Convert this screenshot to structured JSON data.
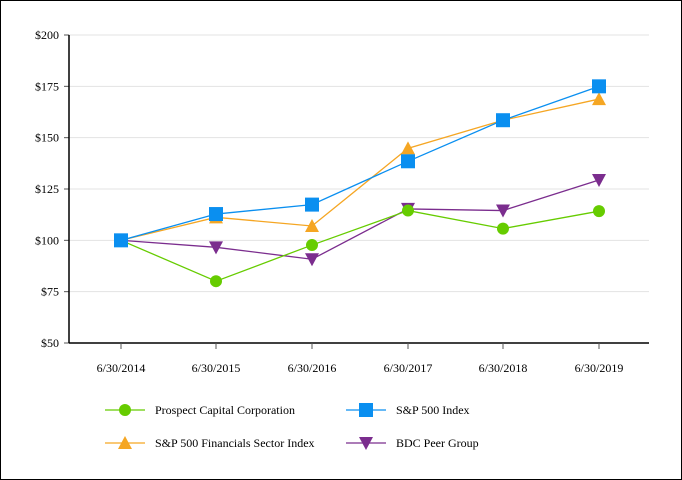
{
  "chart_data": {
    "type": "line",
    "title": "",
    "xlabel": "",
    "ylabel": "",
    "categories": [
      "6/30/2014",
      "6/30/2015",
      "6/30/2016",
      "6/30/2017",
      "6/30/2018",
      "6/30/2019"
    ],
    "ylim": [
      50,
      200
    ],
    "yticks": [
      50,
      75,
      100,
      125,
      150,
      175,
      200
    ],
    "ytick_labels": [
      "$50",
      "$75",
      "$100",
      "$125",
      "$150",
      "$175",
      "$200"
    ],
    "grid": true,
    "legend_position": "bottom",
    "series": [
      {
        "name": "Prospect Capital Corporation",
        "color": "#66cc00",
        "marker": "circle",
        "values": [
          100,
          80.1,
          97.7,
          114.5,
          105.7,
          114.2
        ]
      },
      {
        "name": "S&P 500 Index",
        "color": "#0a8ff0",
        "marker": "square",
        "values": [
          100,
          112.8,
          117.4,
          138.5,
          158.5,
          175.0
        ]
      },
      {
        "name": "S&P 500 Financials Sector Index",
        "color": "#f5a623",
        "marker": "triangle-up",
        "values": [
          100,
          111.2,
          107.0,
          144.8,
          158.5,
          168.8
        ]
      },
      {
        "name": "BDC Peer Group",
        "color": "#7b2d8e",
        "marker": "triangle-down",
        "values": [
          100,
          96.6,
          90.8,
          115.3,
          114.5,
          129.4
        ]
      }
    ]
  }
}
